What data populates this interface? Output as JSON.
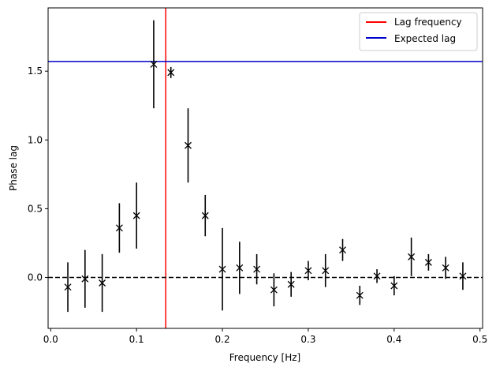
{
  "chart_data": {
    "type": "scatter",
    "xlabel": "Frequency [Hz]",
    "ylabel": "Phase lag",
    "xlim": [
      -0.003,
      0.503
    ],
    "ylim": [
      -0.37,
      1.96
    ],
    "x_ticks": [
      0.0,
      0.1,
      0.2,
      0.3,
      0.4,
      0.5
    ],
    "x_tick_labels": [
      "0.0",
      "0.1",
      "0.2",
      "0.3",
      "0.4",
      "0.5"
    ],
    "y_ticks": [
      0.0,
      0.5,
      1.0,
      1.5
    ],
    "y_tick_labels": [
      "0.0",
      "0.5",
      "1.0",
      "1.5"
    ],
    "grid": false,
    "legend_position": "top-right",
    "series": [
      {
        "marker": "x",
        "color": "#000000",
        "x": [
          0.02,
          0.04,
          0.06,
          0.08,
          0.1,
          0.12,
          0.14,
          0.16,
          0.18,
          0.2,
          0.22,
          0.24,
          0.26,
          0.28,
          0.3,
          0.32,
          0.34,
          0.36,
          0.38,
          0.4,
          0.42,
          0.44,
          0.46,
          0.48
        ],
        "y": [
          -0.07,
          -0.01,
          -0.04,
          0.36,
          0.45,
          1.55,
          1.49,
          0.96,
          0.45,
          0.06,
          0.07,
          0.06,
          -0.09,
          -0.05,
          0.05,
          0.05,
          0.2,
          -0.13,
          0.01,
          -0.06,
          0.15,
          0.11,
          0.07,
          0.01
        ],
        "y_err": [
          0.18,
          0.21,
          0.21,
          0.18,
          0.24,
          0.32,
          0.04,
          0.27,
          0.15,
          0.3,
          0.19,
          0.11,
          0.12,
          0.09,
          0.07,
          0.12,
          0.08,
          0.07,
          0.05,
          0.07,
          0.14,
          0.06,
          0.08,
          0.1
        ]
      }
    ],
    "lines": [
      {
        "orientation": "vertical",
        "value": 0.134,
        "color": "#ff0000",
        "style": "solid",
        "label": "Lag frequency"
      },
      {
        "orientation": "horizontal",
        "value": 1.5708,
        "color": "#0000cc",
        "style": "solid",
        "label": "Expected lag"
      },
      {
        "orientation": "horizontal",
        "value": 0.0,
        "color": "#000000",
        "style": "dashed",
        "label": ""
      }
    ]
  }
}
